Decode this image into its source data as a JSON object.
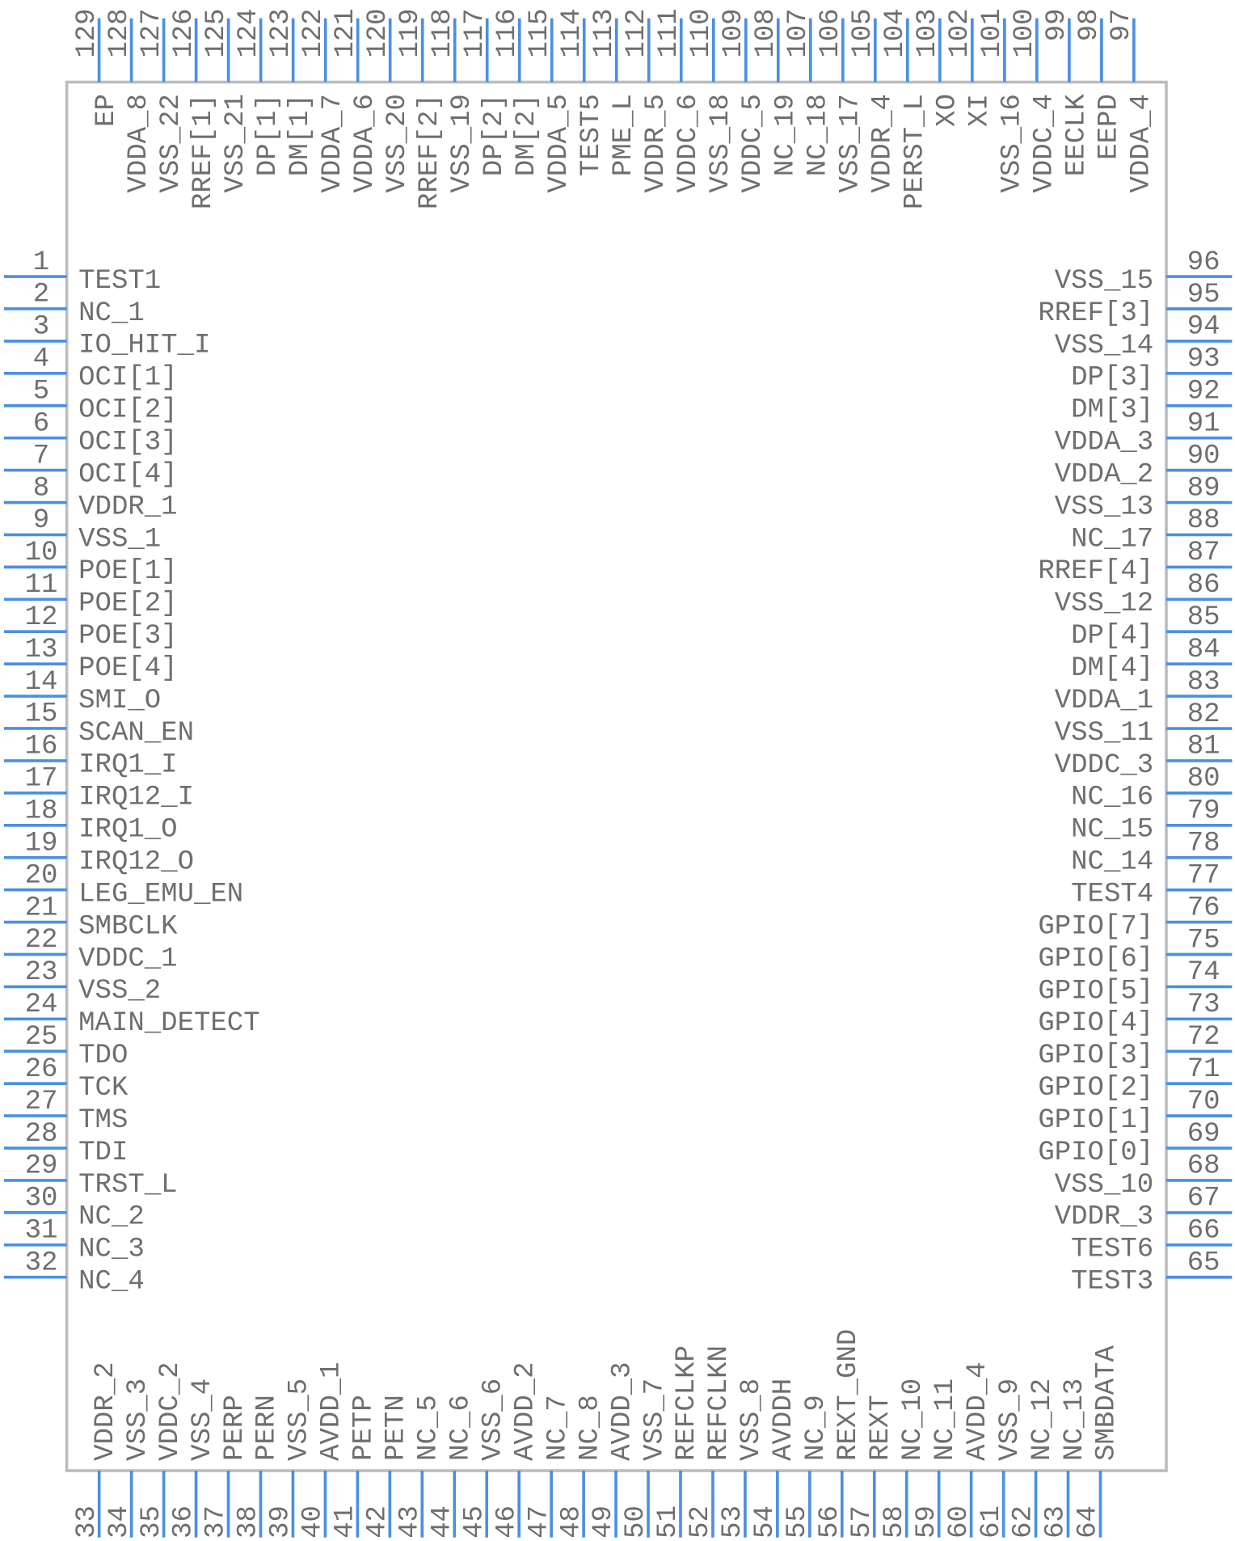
{
  "pins": {
    "left": [
      {
        "number": 1,
        "name": "TEST1"
      },
      {
        "number": 2,
        "name": "NC_1"
      },
      {
        "number": 3,
        "name": "IO_HIT_I"
      },
      {
        "number": 4,
        "name": "OCI[1]"
      },
      {
        "number": 5,
        "name": "OCI[2]"
      },
      {
        "number": 6,
        "name": "OCI[3]"
      },
      {
        "number": 7,
        "name": "OCI[4]"
      },
      {
        "number": 8,
        "name": "VDDR_1"
      },
      {
        "number": 9,
        "name": "VSS_1"
      },
      {
        "number": 10,
        "name": "POE[1]"
      },
      {
        "number": 11,
        "name": "POE[2]"
      },
      {
        "number": 12,
        "name": "POE[3]"
      },
      {
        "number": 13,
        "name": "POE[4]"
      },
      {
        "number": 14,
        "name": "SMI_O"
      },
      {
        "number": 15,
        "name": "SCAN_EN"
      },
      {
        "number": 16,
        "name": "IRQ1_I"
      },
      {
        "number": 17,
        "name": "IRQ12_I"
      },
      {
        "number": 18,
        "name": "IRQ1_O"
      },
      {
        "number": 19,
        "name": "IRQ12_O"
      },
      {
        "number": 20,
        "name": "LEG_EMU_EN"
      },
      {
        "number": 21,
        "name": "SMBCLK"
      },
      {
        "number": 22,
        "name": "VDDC_1"
      },
      {
        "number": 23,
        "name": "VSS_2"
      },
      {
        "number": 24,
        "name": "MAIN_DETECT"
      },
      {
        "number": 25,
        "name": "TDO"
      },
      {
        "number": 26,
        "name": "TCK"
      },
      {
        "number": 27,
        "name": "TMS"
      },
      {
        "number": 28,
        "name": "TDI"
      },
      {
        "number": 29,
        "name": "TRST_L"
      },
      {
        "number": 30,
        "name": "NC_2"
      },
      {
        "number": 31,
        "name": "NC_3"
      },
      {
        "number": 32,
        "name": "NC_4"
      }
    ],
    "bottom": [
      {
        "number": 33,
        "name": "VDDR_2"
      },
      {
        "number": 34,
        "name": "VSS_3"
      },
      {
        "number": 35,
        "name": "VDDC_2"
      },
      {
        "number": 36,
        "name": "VSS_4"
      },
      {
        "number": 37,
        "name": "PERP"
      },
      {
        "number": 38,
        "name": "PERN"
      },
      {
        "number": 39,
        "name": "VSS_5"
      },
      {
        "number": 40,
        "name": "AVDD_1"
      },
      {
        "number": 41,
        "name": "PETP"
      },
      {
        "number": 42,
        "name": "PETN"
      },
      {
        "number": 43,
        "name": "NC_5"
      },
      {
        "number": 44,
        "name": "NC_6"
      },
      {
        "number": 45,
        "name": "VSS_6"
      },
      {
        "number": 46,
        "name": "AVDD_2"
      },
      {
        "number": 47,
        "name": "NC_7"
      },
      {
        "number": 48,
        "name": "NC_8"
      },
      {
        "number": 49,
        "name": "AVDD_3"
      },
      {
        "number": 50,
        "name": "VSS_7"
      },
      {
        "number": 51,
        "name": "REFCLKP"
      },
      {
        "number": 52,
        "name": "REFCLKN"
      },
      {
        "number": 53,
        "name": "VSS_8"
      },
      {
        "number": 54,
        "name": "AVDDH"
      },
      {
        "number": 55,
        "name": "NC_9"
      },
      {
        "number": 56,
        "name": "REXT_GND"
      },
      {
        "number": 57,
        "name": "REXT"
      },
      {
        "number": 58,
        "name": "NC_10"
      },
      {
        "number": 59,
        "name": "NC_11"
      },
      {
        "number": 60,
        "name": "AVDD_4"
      },
      {
        "number": 61,
        "name": "VSS_9"
      },
      {
        "number": 62,
        "name": "NC_12"
      },
      {
        "number": 63,
        "name": "NC_13"
      },
      {
        "number": 64,
        "name": "SMBDATA"
      }
    ],
    "right": [
      {
        "number": 65,
        "name": "TEST3"
      },
      {
        "number": 66,
        "name": "TEST6"
      },
      {
        "number": 67,
        "name": "VDDR_3"
      },
      {
        "number": 68,
        "name": "VSS_10"
      },
      {
        "number": 69,
        "name": "GPIO[0]"
      },
      {
        "number": 70,
        "name": "GPIO[1]"
      },
      {
        "number": 71,
        "name": "GPIO[2]"
      },
      {
        "number": 72,
        "name": "GPIO[3]"
      },
      {
        "number": 73,
        "name": "GPIO[4]"
      },
      {
        "number": 74,
        "name": "GPIO[5]"
      },
      {
        "number": 75,
        "name": "GPIO[6]"
      },
      {
        "number": 76,
        "name": "GPIO[7]"
      },
      {
        "number": 77,
        "name": "TEST4"
      },
      {
        "number": 78,
        "name": "NC_14"
      },
      {
        "number": 79,
        "name": "NC_15"
      },
      {
        "number": 80,
        "name": "NC_16"
      },
      {
        "number": 81,
        "name": "VDDC_3"
      },
      {
        "number": 82,
        "name": "VSS_11"
      },
      {
        "number": 83,
        "name": "VDDA_1"
      },
      {
        "number": 84,
        "name": "DM[4]"
      },
      {
        "number": 85,
        "name": "DP[4]"
      },
      {
        "number": 86,
        "name": "VSS_12"
      },
      {
        "number": 87,
        "name": "RREF[4]"
      },
      {
        "number": 88,
        "name": "NC_17"
      },
      {
        "number": 89,
        "name": "VSS_13"
      },
      {
        "number": 90,
        "name": "VDDA_2"
      },
      {
        "number": 91,
        "name": "VDDA_3"
      },
      {
        "number": 92,
        "name": "DM[3]"
      },
      {
        "number": 93,
        "name": "DP[3]"
      },
      {
        "number": 94,
        "name": "VSS_14"
      },
      {
        "number": 95,
        "name": "RREF[3]"
      },
      {
        "number": 96,
        "name": "VSS_15"
      }
    ],
    "top": [
      {
        "number": 97,
        "name": "VDDA_4"
      },
      {
        "number": 98,
        "name": "EEPD"
      },
      {
        "number": 99,
        "name": "EECLK"
      },
      {
        "number": 100,
        "name": "VDDC_4"
      },
      {
        "number": 101,
        "name": "VSS_16"
      },
      {
        "number": 102,
        "name": "XI"
      },
      {
        "number": 103,
        "name": "XO"
      },
      {
        "number": 104,
        "name": "PERST_L"
      },
      {
        "number": 105,
        "name": "VDDR_4"
      },
      {
        "number": 106,
        "name": "VSS_17"
      },
      {
        "number": 107,
        "name": "NC_18"
      },
      {
        "number": 108,
        "name": "NC_19"
      },
      {
        "number": 109,
        "name": "VDDC_5"
      },
      {
        "number": 110,
        "name": "VSS_18"
      },
      {
        "number": 111,
        "name": "VDDC_6"
      },
      {
        "number": 112,
        "name": "VDDR_5"
      },
      {
        "number": 113,
        "name": "PME_L"
      },
      {
        "number": 114,
        "name": "TEST5"
      },
      {
        "number": 115,
        "name": "VDDA_5"
      },
      {
        "number": 116,
        "name": "DM[2]"
      },
      {
        "number": 117,
        "name": "DP[2]"
      },
      {
        "number": 118,
        "name": "VSS_19"
      },
      {
        "number": 119,
        "name": "RREF[2]"
      },
      {
        "number": 120,
        "name": "VSS_20"
      },
      {
        "number": 121,
        "name": "VDDA_6"
      },
      {
        "number": 122,
        "name": "VDDA_7"
      },
      {
        "number": 123,
        "name": "DM[1]"
      },
      {
        "number": 124,
        "name": "DP[1]"
      },
      {
        "number": 125,
        "name": "VSS_21"
      },
      {
        "number": 126,
        "name": "RREF[1]"
      },
      {
        "number": 127,
        "name": "VSS_22"
      },
      {
        "number": 128,
        "name": "VDDA_8"
      },
      {
        "number": 129,
        "name": "EP"
      }
    ]
  }
}
